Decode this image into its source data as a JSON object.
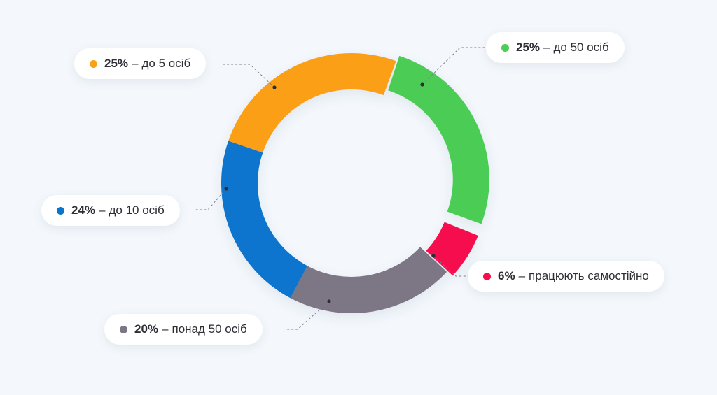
{
  "chart_data": {
    "type": "pie",
    "title": "",
    "slices": [
      {
        "key": "s1",
        "value": 25,
        "percent_label": "25%",
        "separator": "–",
        "description": "до 5 осіб",
        "color": "#fba015"
      },
      {
        "key": "s2",
        "value": 25,
        "percent_label": "25%",
        "separator": "–",
        "description": "до 50 осіб",
        "color": "#4ccd54"
      },
      {
        "key": "s3",
        "value": 6,
        "percent_label": "6%",
        "separator": "–",
        "description": "працюють самостійно",
        "color": "#f50f4e"
      },
      {
        "key": "s4",
        "value": 20,
        "percent_label": "20%",
        "separator": "–",
        "description": "понад 50 осіб",
        "color": "#7c7685"
      },
      {
        "key": "s5",
        "value": 24,
        "percent_label": "24%",
        "separator": "–",
        "description": "до 10 осіб",
        "color": "#0774cd"
      }
    ]
  }
}
